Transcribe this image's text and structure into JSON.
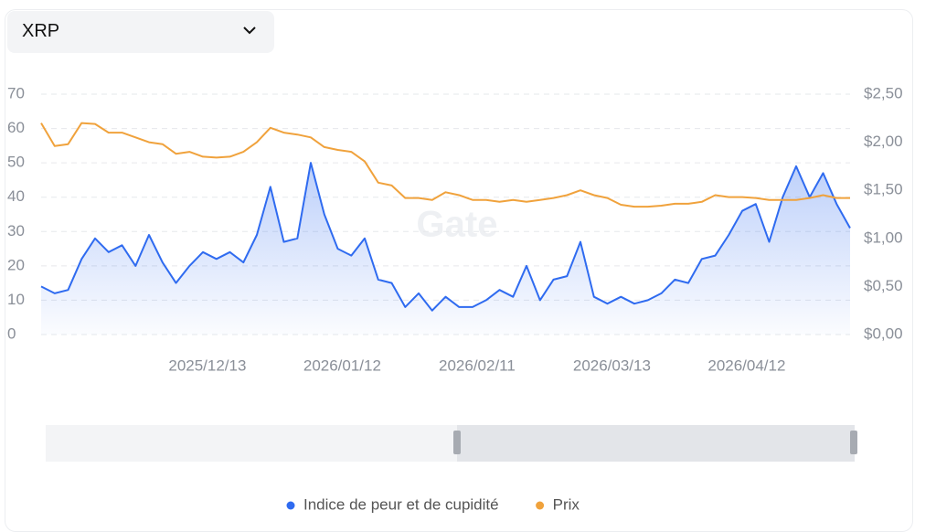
{
  "selector": "XRP",
  "watermark": "Gate",
  "chart_data": {
    "type": "line",
    "x": [
      "2025/11/06",
      "2025/11/09",
      "2025/11/12",
      "2025/11/15",
      "2025/11/18",
      "2025/11/21",
      "2025/11/24",
      "2025/11/27",
      "2025/11/30",
      "2025/12/03",
      "2025/12/06",
      "2025/12/09",
      "2025/12/12",
      "2025/12/15",
      "2025/12/18",
      "2025/12/21",
      "2025/12/24",
      "2025/12/27",
      "2025/12/30",
      "2026/01/02",
      "2026/01/05",
      "2026/01/08",
      "2026/01/11",
      "2026/01/14",
      "2026/01/17",
      "2026/01/20",
      "2026/01/23",
      "2026/01/26",
      "2026/01/29",
      "2026/02/01",
      "2026/02/04",
      "2026/02/07",
      "2026/02/10",
      "2026/02/13",
      "2026/02/16",
      "2026/02/19",
      "2026/02/22",
      "2026/02/25",
      "2026/02/28",
      "2026/03/03",
      "2026/03/06",
      "2026/03/09",
      "2026/03/12",
      "2026/03/15",
      "2026/03/18",
      "2026/03/21",
      "2026/03/24",
      "2026/03/27",
      "2026/03/30",
      "2026/04/02",
      "2026/04/05",
      "2026/04/08",
      "2026/04/11",
      "2026/04/14",
      "2026/04/17",
      "2026/04/20",
      "2026/04/23",
      "2026/04/26",
      "2026/04/29",
      "2026/05/02",
      "2026/05/05"
    ],
    "xlim": [
      "2025/11/06",
      "2026/05/05"
    ],
    "xticks": [
      "2025/12/13",
      "2026/01/12",
      "2026/02/11",
      "2026/03/13",
      "2026/04/12"
    ],
    "ylim": [
      0,
      70
    ],
    "yticks": [
      0,
      10,
      20,
      30,
      40,
      50,
      60,
      70
    ],
    "y2lim": [
      0,
      2.5
    ],
    "y2ticks": [
      {
        "value": 0,
        "label": "$0,00"
      },
      {
        "value": 0.5,
        "label": "$0,50"
      },
      {
        "value": 1,
        "label": "$1,00"
      },
      {
        "value": 1.5,
        "label": "$1,50"
      },
      {
        "value": 2,
        "label": "$2,00"
      },
      {
        "value": 2.5,
        "label": "$2,50"
      }
    ],
    "grid": true,
    "legend": "bottom",
    "series": [
      {
        "name": "Indice de peur et de cupidité",
        "color": "#2f6bf0",
        "values": [
          14,
          12,
          13,
          22,
          28,
          24,
          26,
          20,
          29,
          21,
          15,
          20,
          24,
          22,
          24,
          21,
          29,
          43,
          27,
          28,
          50,
          35,
          25,
          23,
          28,
          16,
          15,
          8,
          12,
          7,
          11,
          8,
          8,
          10,
          13,
          11,
          20,
          10,
          16,
          17,
          27,
          11,
          9,
          11,
          9,
          10,
          12,
          16,
          15,
          22,
          23,
          29,
          36,
          38,
          27,
          40,
          49,
          40,
          47,
          38,
          31
        ]
      },
      {
        "name": "Prix",
        "color": "#f0a23c",
        "axis": "y2",
        "values": [
          2.2,
          1.96,
          1.98,
          2.2,
          2.19,
          2.1,
          2.1,
          2.05,
          2.0,
          1.98,
          1.88,
          1.9,
          1.85,
          1.84,
          1.85,
          1.9,
          2.0,
          2.15,
          2.1,
          2.08,
          2.05,
          1.95,
          1.92,
          1.9,
          1.8,
          1.58,
          1.55,
          1.42,
          1.42,
          1.4,
          1.48,
          1.45,
          1.4,
          1.4,
          1.38,
          1.4,
          1.38,
          1.4,
          1.42,
          1.45,
          1.5,
          1.45,
          1.42,
          1.35,
          1.33,
          1.33,
          1.34,
          1.36,
          1.36,
          1.38,
          1.45,
          1.43,
          1.43,
          1.42,
          1.4,
          1.4,
          1.4,
          1.42,
          1.45,
          1.42,
          1.42
        ]
      }
    ]
  }
}
